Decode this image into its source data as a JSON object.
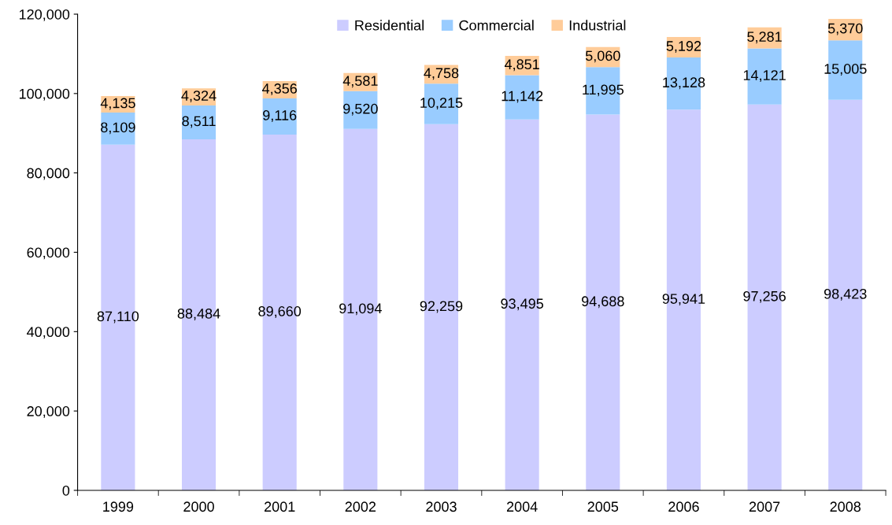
{
  "chart_data": {
    "type": "bar",
    "stacked": true,
    "grid": false,
    "legend": "top",
    "categories": [
      "1999",
      "2000",
      "2001",
      "2002",
      "2003",
      "2004",
      "2005",
      "2006",
      "2007",
      "2008"
    ],
    "series": [
      {
        "name": "Residential",
        "color": "#ccccff",
        "values": [
          87110,
          88484,
          89660,
          91094,
          92259,
          93495,
          94688,
          95941,
          97256,
          98423
        ],
        "value_labels": [
          "87,110",
          "88,484",
          "89,660",
          "91,094",
          "92,259",
          "93,495",
          "94,688",
          "95,941",
          "97,256",
          "98,423"
        ]
      },
      {
        "name": "Commercial",
        "color": "#99ccff",
        "values": [
          8109,
          8511,
          9116,
          9520,
          10215,
          11142,
          11995,
          13128,
          14121,
          15005
        ],
        "value_labels": [
          "8,109",
          "8,511",
          "9,116",
          "9,520",
          "10,215",
          "11,142",
          "11,995",
          "13,128",
          "14,121",
          "15,005"
        ]
      },
      {
        "name": "Industrial",
        "color": "#ffcc99",
        "values": [
          4135,
          4324,
          4356,
          4581,
          4758,
          4851,
          5060,
          5192,
          5281,
          5370
        ],
        "value_labels": [
          "4,135",
          "4,324",
          "4,356",
          "4,581",
          "4,758",
          "4,851",
          "5,060",
          "5,192",
          "5,281",
          "5,370"
        ]
      }
    ],
    "ylim": [
      0,
      120000
    ],
    "yticks": [
      0,
      {
        "value": 20000,
        "label": "20,000"
      },
      {
        "value": 40000,
        "label": "40,000"
      },
      {
        "value": 60000,
        "label": "60,000"
      },
      {
        "value": 80000,
        "label": "80,000"
      },
      {
        "value": 100000,
        "label": "100,000"
      },
      {
        "value": 120000,
        "label": "120,000"
      }
    ]
  }
}
